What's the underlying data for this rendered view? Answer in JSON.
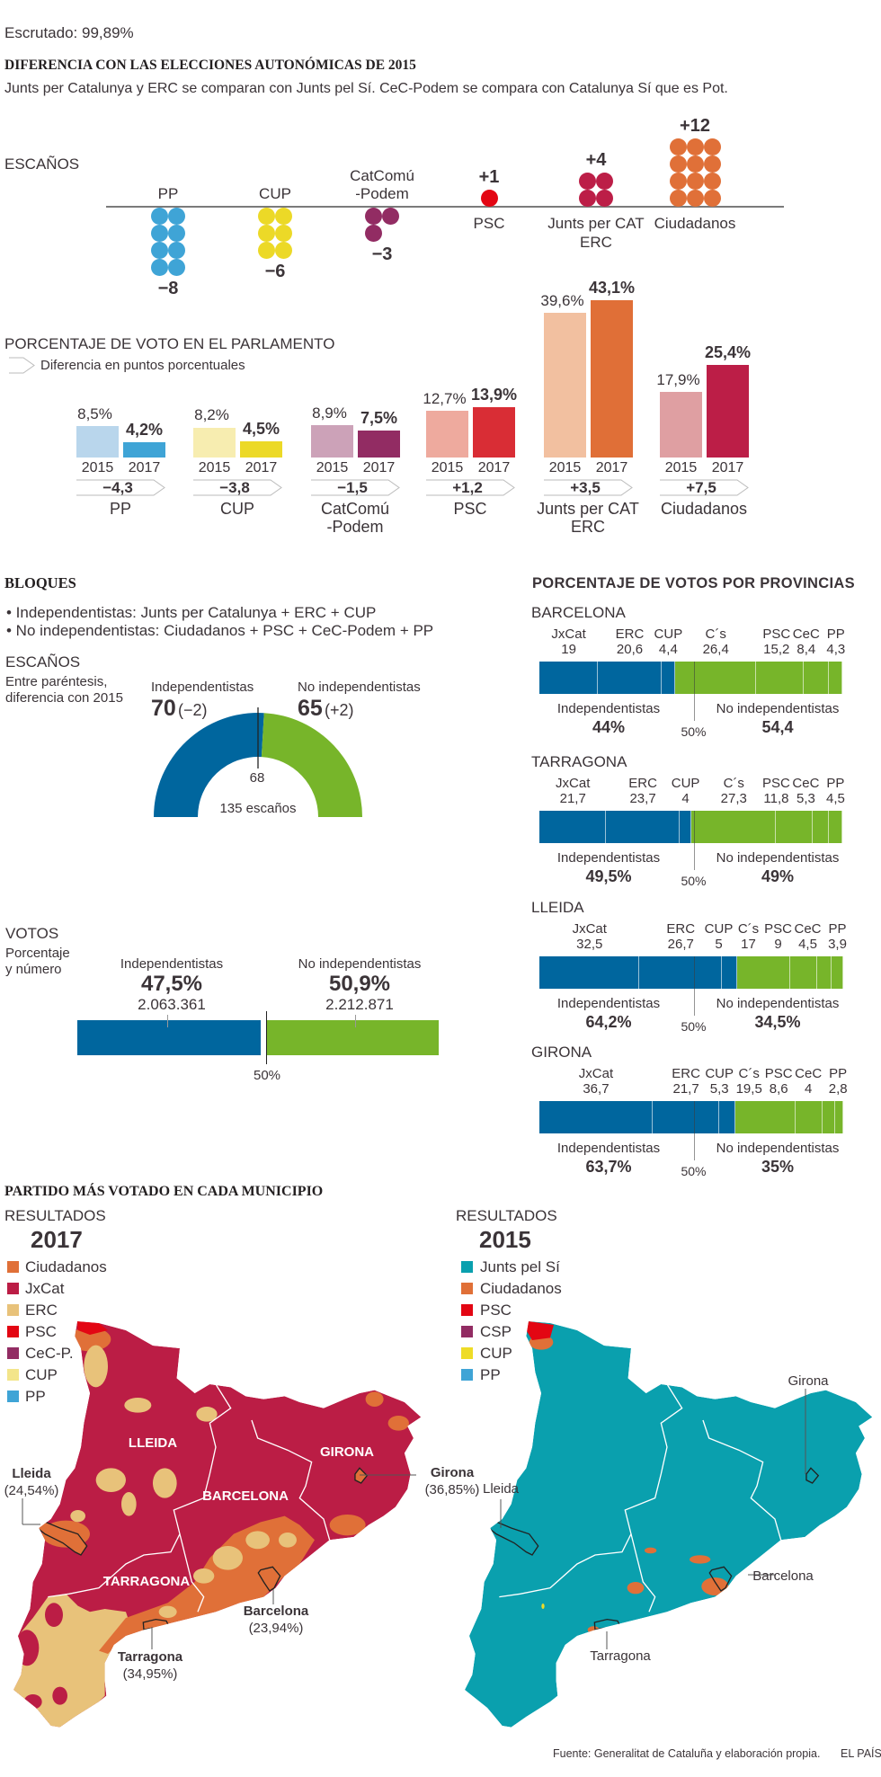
{
  "header": {
    "escrutado": "Escrutado: 99,89%",
    "title": "DIFERENCIA CON LAS ELECCIONES AUTONÓMICAS DE 2015",
    "subtitle": "Junts per Catalunya y ERC se comparan con Junts pel Sí. CeC-Podem se compara con Catalunya Sí que es Pot."
  },
  "seats_section": {
    "title": "ESCAÑOS"
  },
  "vote_section": {
    "title": "PORCENTAJE DE VOTO EN EL PARLAMENTO",
    "legend": "Diferencia en puntos porcentuales"
  },
  "bloques": {
    "title": "BLOQUES",
    "bullets": [
      "• Independentistas: Junts per Catalunya + ERC + CUP",
      "• No independentistas: Ciudadanos + PSC + CeC-Podem + PP"
    ],
    "seats_title": "ESCAÑOS",
    "seats_note": [
      "Entre paréntesis,",
      "diferencia con 2015"
    ],
    "votes_title": "VOTOS",
    "votes_note": [
      "Porcentaje",
      "y número"
    ]
  },
  "provinces_section": {
    "title": "PORCENTAJE DE VOTOS POR PROVINCIAS"
  },
  "maps": {
    "title": "PARTIDO MÁS VOTADO EN CADA MUNICIPIO",
    "left": {
      "heading": "RESULTADOS",
      "year": "2017",
      "legend": [
        {
          "label": "Ciudadanos",
          "color": "#e07038"
        },
        {
          "label": "JxCat",
          "color": "#bb1d45"
        },
        {
          "label": "ERC",
          "color": "#e8c27a"
        },
        {
          "label": "PSC",
          "color": "#e30613"
        },
        {
          "label": "CeC-P.",
          "color": "#922c63"
        },
        {
          "label": "CUP",
          "color": "#f3e58a"
        },
        {
          "label": "PP",
          "color": "#3fa4d6"
        }
      ],
      "province_labels": [
        "LLEIDA",
        "GIRONA",
        "BARCELONA",
        "TARRAGONA"
      ],
      "city_labels": [
        {
          "name": "Lleida",
          "pct": "(24,54%)"
        },
        {
          "name": "Girona",
          "pct": "(36,85%)"
        },
        {
          "name": "Barcelona",
          "pct": "(23,94%)"
        },
        {
          "name": "Tarragona",
          "pct": "(34,95%)"
        }
      ]
    },
    "right": {
      "heading": "RESULTADOS",
      "year": "2015",
      "legend": [
        {
          "label": "Junts pel Sí",
          "color": "#0aa0ae"
        },
        {
          "label": "Ciudadanos",
          "color": "#e07038"
        },
        {
          "label": "PSC",
          "color": "#e30613"
        },
        {
          "label": "CSP",
          "color": "#922c63"
        },
        {
          "label": "CUP",
          "color": "#eedc27"
        },
        {
          "label": "PP",
          "color": "#3fa4d6"
        }
      ],
      "city_labels": [
        "Girona",
        "Lleida",
        "Barcelona",
        "Tarragona"
      ]
    }
  },
  "footer": {
    "source": "Fuente: Generalitat de Cataluña y elaboración propia.",
    "brand": "EL PAÍS"
  },
  "colors": {
    "independentistas": "#00669e",
    "no_independentistas": "#77b52a",
    "text": "#3b3438"
  },
  "chart_data": [
    {
      "type": "bar",
      "title": "ESCAÑOS",
      "categories": [
        [
          "PP"
        ],
        [
          "CUP"
        ],
        [
          "CatComú",
          "-Podem"
        ],
        [
          "PSC"
        ],
        [
          "Junts per CAT",
          "ERC"
        ],
        [
          "Ciudadanos"
        ]
      ],
      "values": [
        -8,
        -6,
        -3,
        1,
        4,
        12
      ],
      "value_labels": [
        "−8",
        "−6",
        "−3",
        "+1",
        "+4",
        "+12"
      ],
      "colors": [
        "#3fa4d6",
        "#ecd927",
        "#922c63",
        "#e30613",
        "#bc1e47",
        "#e07038"
      ]
    },
    {
      "type": "bar",
      "title": "PORCENTAJE DE VOTO EN EL PARLAMENTO",
      "categories": [
        [
          "PP"
        ],
        [
          "CUP"
        ],
        [
          "CatComú",
          "-Podem"
        ],
        [
          "PSC"
        ],
        [
          "Junts per CAT",
          "ERC"
        ],
        [
          "Ciudadanos"
        ]
      ],
      "series": [
        {
          "name": "2015",
          "values": [
            8.5,
            8.2,
            8.9,
            12.7,
            39.6,
            17.9
          ],
          "labels": [
            "8,5%",
            "8,2%",
            "8,9%",
            "12,7%",
            "39,6%",
            "17,9%"
          ],
          "colors": [
            "#b9d6ec",
            "#f7edb0",
            "#cca2b8",
            "#eeaa9e",
            "#f2c0a0",
            "#df9fa2"
          ]
        },
        {
          "name": "2017",
          "values": [
            4.2,
            4.5,
            7.5,
            13.9,
            43.1,
            25.4
          ],
          "labels": [
            "4,2%",
            "4,5%",
            "7,5%",
            "13,9%",
            "43,1%",
            "25,4%"
          ],
          "colors": [
            "#3fa4d6",
            "#ecd927",
            "#922c63",
            "#d92d35",
            "#e06f37",
            "#bc1e47"
          ]
        }
      ],
      "diff_labels": [
        "−4,3",
        "−3,8",
        "−1,5",
        "+1,2",
        "+3,5",
        "+7,5"
      ],
      "unit": "%"
    },
    {
      "type": "pie",
      "title": "ESCAÑOS",
      "categories": [
        "Independentistas",
        "No independentistas"
      ],
      "values": [
        70,
        65
      ],
      "value_labels": [
        "70",
        "65"
      ],
      "change_labels": [
        "(−2)",
        "(+2)"
      ],
      "majority_label": "68",
      "total_label": "135 escaños"
    },
    {
      "type": "bar",
      "title": "VOTOS",
      "categories": [
        "Independentistas",
        "No independentistas"
      ],
      "values": [
        47.5,
        50.9
      ],
      "pct_labels": [
        "47,5%",
        "50,9%"
      ],
      "count_labels": [
        "2.063.361",
        "2.212.871"
      ],
      "reference_label": "50%"
    },
    {
      "type": "bar",
      "title": "PORCENTAJE DE VOTOS POR PROVINCIAS",
      "stacked": true,
      "parties": [
        "JxCat",
        "ERC",
        "CUP",
        "C´s",
        "PSC",
        "CeC",
        "PP"
      ],
      "bloc_of_party": [
        "ind",
        "ind",
        "ind",
        "no",
        "no",
        "no",
        "no"
      ],
      "bloc_names": [
        "Independentistas",
        "No independentistas"
      ],
      "reference_label": "50%",
      "provinces": [
        {
          "name": "BARCELONA",
          "values": [
            19,
            20.6,
            4.4,
            26.4,
            15.2,
            8.4,
            4.3
          ],
          "value_labels": [
            "19",
            "20,6",
            "4,4",
            "26,4",
            "15,2",
            "8,4",
            "4,3"
          ],
          "bloc_labels": [
            "44%",
            "54,4"
          ]
        },
        {
          "name": "TARRAGONA",
          "values": [
            21.7,
            23.7,
            4,
            27.3,
            11.8,
            5.3,
            4.5
          ],
          "value_labels": [
            "21,7",
            "23,7",
            "4",
            "27,3",
            "11,8",
            "5,3",
            "4,5"
          ],
          "bloc_labels": [
            "49,5%",
            "49%"
          ]
        },
        {
          "name": "LLEIDA",
          "values": [
            32.5,
            26.7,
            5,
            17,
            9,
            4.5,
            3.9
          ],
          "value_labels": [
            "32,5",
            "26,7",
            "5",
            "17",
            "9",
            "4,5",
            "3,9"
          ],
          "bloc_labels": [
            "64,2%",
            "34,5%"
          ]
        },
        {
          "name": "GIRONA",
          "values": [
            36.7,
            21.7,
            5.3,
            19.5,
            8.6,
            4,
            2.8
          ],
          "value_labels": [
            "36,7",
            "21,7",
            "5,3",
            "19,5",
            "8,6",
            "4",
            "2,8"
          ],
          "bloc_labels": [
            "63,7%",
            "35%"
          ]
        }
      ]
    }
  ]
}
